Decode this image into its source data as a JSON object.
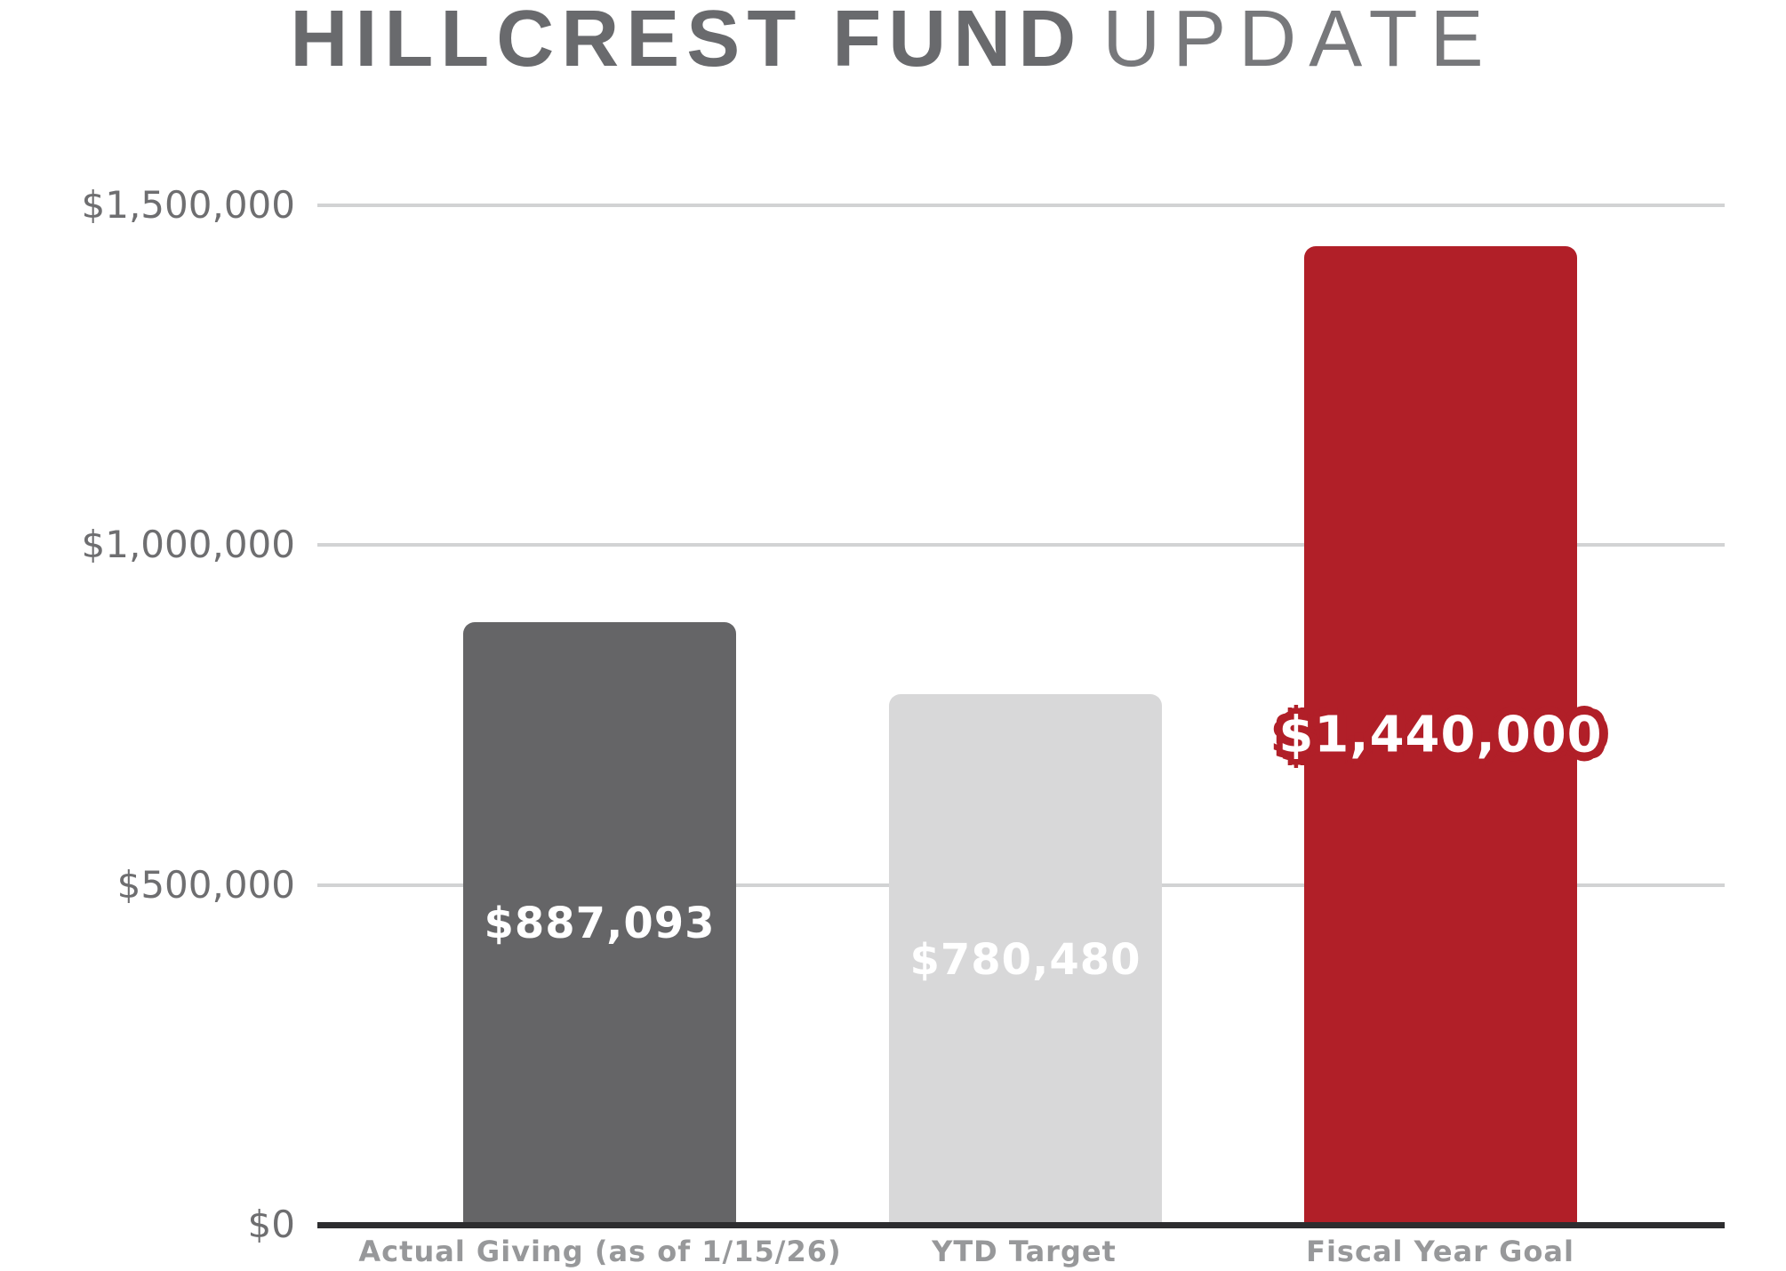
{
  "title": {
    "primary": "HILLCREST FUND",
    "secondary": "UPDATE"
  },
  "chart_data": {
    "type": "bar",
    "title": "HILLCREST FUND UPDATE",
    "categories": [
      "Actual Giving (as of 1/15/26)",
      "YTD Target",
      "Fiscal Year Goal"
    ],
    "values": [
      887093,
      780480,
      1440000
    ],
    "value_labels": [
      "$887,093",
      "$780,480",
      "$1,440,000"
    ],
    "bar_colors": [
      "#656567",
      "#d8d8d9",
      "#b11f28"
    ],
    "y_ticks": [
      {
        "value": 0,
        "label": "$0"
      },
      {
        "value": 500000,
        "label": "$500,000"
      },
      {
        "value": 1000000,
        "label": "$1,000,000"
      },
      {
        "value": 1500000,
        "label": "$1,500,000"
      }
    ],
    "ylim": [
      0,
      1500000
    ],
    "xlabel": "",
    "ylabel": "",
    "grid": true,
    "legend": "none",
    "colors": {
      "title_primary": "#696a6d",
      "title_secondary": "#77787b",
      "gridline": "#d2d3d4",
      "axis_line": "#2d2d2f",
      "y_tick_text": "#6e6e70",
      "x_label_text": "#97989a",
      "bar_value_text": "#ffffff"
    }
  }
}
